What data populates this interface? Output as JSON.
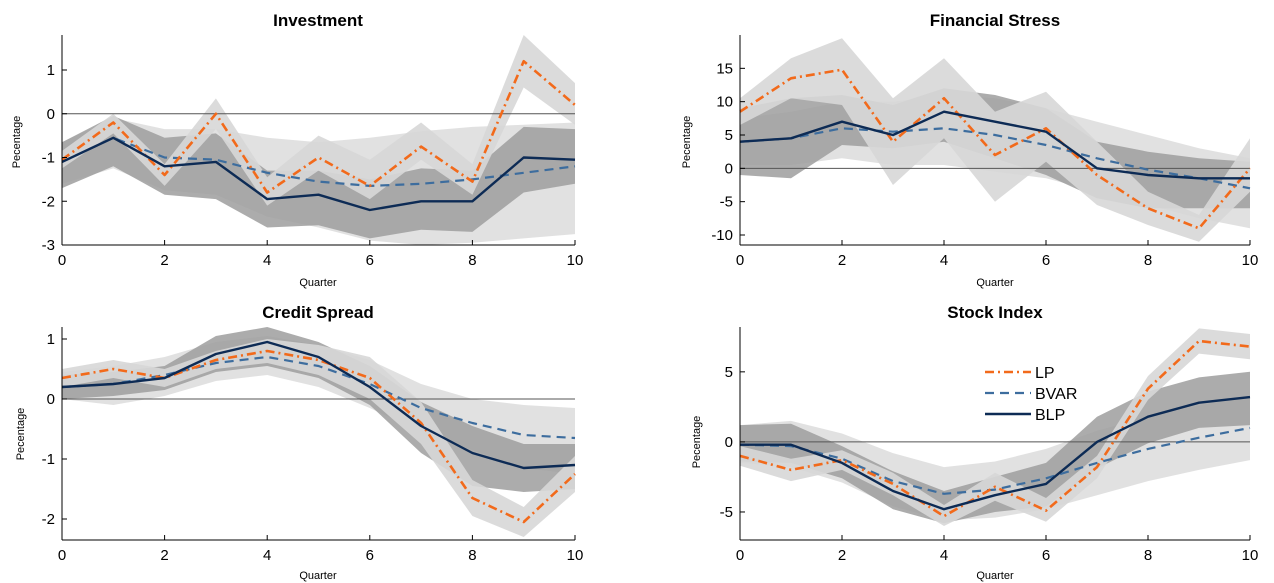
{
  "colors": {
    "LP": "#f26a1b",
    "BVAR": "#3d6d9e",
    "BLP": "#0d2b55",
    "band_light": "#d7d7d7",
    "band_dark": "#9e9e9e",
    "zero": "#555555"
  },
  "chart_data": [
    {
      "type": "line",
      "title": "Investment",
      "xlabel": "Quarter",
      "ylabel": "Pecentage",
      "x": [
        0,
        1,
        2,
        3,
        4,
        5,
        6,
        7,
        8,
        9,
        10
      ],
      "xticks": [
        0,
        2,
        4,
        6,
        8,
        10
      ],
      "yticks": [
        -3,
        -2,
        -1,
        0,
        1
      ],
      "ylim": [
        -3,
        1.8
      ],
      "series": [
        {
          "name": "LP",
          "values": [
            -1.05,
            -0.2,
            -1.4,
            0.0,
            -1.8,
            -1.0,
            -1.65,
            -0.75,
            -1.55,
            1.2,
            0.2
          ]
        },
        {
          "name": "BVAR",
          "values": [
            -1.1,
            -0.55,
            -1.0,
            -1.05,
            -1.35,
            -1.55,
            -1.65,
            -1.6,
            -1.5,
            -1.35,
            -1.2
          ]
        },
        {
          "name": "BLP",
          "values": [
            -1.1,
            -0.55,
            -1.2,
            -1.1,
            -1.95,
            -1.85,
            -2.2,
            -2.0,
            -2.0,
            -1.0,
            -1.05
          ]
        }
      ],
      "bands": [
        {
          "name": "LP",
          "lower": [
            -1.25,
            -0.45,
            -1.65,
            -0.35,
            -2.1,
            -1.3,
            -1.95,
            -1.05,
            -1.85,
            0.6,
            -0.25
          ],
          "upper": [
            -0.85,
            0.0,
            -1.15,
            0.35,
            -1.45,
            -0.5,
            -1.05,
            -0.2,
            -1.15,
            1.8,
            0.7
          ]
        },
        {
          "name": "BLP",
          "lower": [
            -1.7,
            -1.2,
            -1.85,
            -1.95,
            -2.6,
            -2.55,
            -2.85,
            -2.65,
            -2.7,
            -1.8,
            -1.6
          ],
          "upper": [
            -0.65,
            -0.05,
            -0.55,
            -0.45,
            -1.3,
            -1.3,
            -1.5,
            -1.25,
            -1.3,
            -0.3,
            -0.35
          ]
        },
        {
          "name": "BVAR",
          "lower": [
            -1.6,
            -1.25,
            -1.75,
            -1.85,
            -2.35,
            -2.6,
            -2.9,
            -3.0,
            -2.95,
            -2.85,
            -2.75
          ],
          "upper": [
            -0.65,
            -0.1,
            -0.35,
            -0.35,
            -0.55,
            -0.65,
            -0.55,
            -0.4,
            -0.3,
            -0.25,
            -0.2
          ]
        }
      ]
    },
    {
      "type": "line",
      "title": "Financial Stress",
      "xlabel": "Quarter",
      "ylabel": "Pecentage",
      "x": [
        0,
        1,
        2,
        3,
        4,
        5,
        6,
        7,
        8,
        9,
        10
      ],
      "xticks": [
        0,
        2,
        4,
        6,
        8,
        10
      ],
      "yticks": [
        -10,
        -5,
        0,
        5,
        10,
        15
      ],
      "ylim": [
        -11.5,
        20
      ],
      "series": [
        {
          "name": "LP",
          "values": [
            8.5,
            13.5,
            14.8,
            4.0,
            10.5,
            2.0,
            6.0,
            -1.0,
            -6.0,
            -9.0,
            0.0
          ]
        },
        {
          "name": "BVAR",
          "values": [
            4.0,
            4.5,
            6.0,
            5.5,
            6.0,
            5.0,
            3.5,
            1.5,
            -0.2,
            -1.5,
            -3.0
          ]
        },
        {
          "name": "BLP",
          "values": [
            4.0,
            4.5,
            7.0,
            5.0,
            8.5,
            7.0,
            5.5,
            0.0,
            -1.0,
            -1.5,
            -1.5
          ]
        }
      ],
      "bands": [
        {
          "name": "LP",
          "lower": [
            6.5,
            10.5,
            9.5,
            -2.5,
            4.5,
            -5.0,
            1.0,
            -5.5,
            -8.5,
            -11.0,
            -3.5
          ],
          "upper": [
            10.5,
            16.5,
            19.5,
            10.5,
            16.5,
            8.5,
            11.5,
            4.0,
            -3.5,
            -7.0,
            4.5
          ]
        },
        {
          "name": "BLP",
          "lower": [
            -1.0,
            -1.5,
            3.5,
            3.0,
            4.0,
            1.5,
            -1.0,
            -4.5,
            -6.0,
            -6.0,
            -6.0
          ],
          "upper": [
            9.0,
            10.5,
            11.0,
            9.5,
            12.0,
            11.0,
            9.0,
            4.0,
            2.5,
            1.5,
            1.0
          ]
        },
        {
          "name": "BVAR",
          "lower": [
            0.5,
            0.5,
            1.5,
            0.5,
            0.5,
            -0.5,
            -1.5,
            -3.5,
            -5.5,
            -7.5,
            -9.0
          ],
          "upper": [
            7.5,
            8.5,
            10.0,
            10.0,
            11.0,
            10.5,
            9.0,
            7.0,
            5.0,
            3.0,
            1.5
          ]
        }
      ]
    },
    {
      "type": "line",
      "title": "Credit Spread",
      "xlabel": "Quarter",
      "ylabel": "Pecentage",
      "x": [
        0,
        1,
        2,
        3,
        4,
        5,
        6,
        7,
        8,
        9,
        10
      ],
      "xticks": [
        0,
        2,
        4,
        6,
        8,
        10
      ],
      "yticks": [
        -2,
        -1,
        0,
        1
      ],
      "ylim": [
        -2.35,
        1.2
      ],
      "series": [
        {
          "name": "LP",
          "values": [
            0.35,
            0.5,
            0.35,
            0.65,
            0.8,
            0.65,
            0.35,
            -0.4,
            -1.65,
            -2.05,
            -1.25
          ]
        },
        {
          "name": "BVAR",
          "values": [
            0.2,
            0.25,
            0.4,
            0.6,
            0.7,
            0.55,
            0.25,
            -0.15,
            -0.4,
            -0.6,
            -0.65
          ]
        },
        {
          "name": "BLP",
          "values": [
            0.2,
            0.25,
            0.35,
            0.75,
            0.95,
            0.7,
            0.2,
            -0.45,
            -0.9,
            -1.15,
            -1.1
          ]
        }
      ],
      "bands": [
        {
          "name": "LP",
          "lower": [
            0.2,
            0.35,
            0.2,
            0.5,
            0.6,
            0.4,
            0.0,
            -0.75,
            -1.95,
            -2.3,
            -1.55
          ],
          "upper": [
            0.5,
            0.65,
            0.5,
            0.8,
            1.0,
            0.9,
            0.7,
            -0.05,
            -1.35,
            -1.8,
            -0.95
          ]
        },
        {
          "name": "BLP",
          "lower": [
            0.0,
            0.05,
            0.15,
            0.45,
            0.55,
            0.35,
            -0.1,
            -0.9,
            -1.45,
            -1.55,
            -1.5
          ],
          "upper": [
            0.4,
            0.45,
            0.55,
            1.05,
            1.2,
            0.95,
            0.55,
            -0.05,
            -0.45,
            -0.75,
            -0.75
          ]
        },
        {
          "name": "BVAR",
          "lower": [
            0.0,
            -0.1,
            0.05,
            0.3,
            0.4,
            0.2,
            -0.15,
            -0.55,
            -0.85,
            -1.15,
            -1.25
          ],
          "upper": [
            0.45,
            0.55,
            0.7,
            0.95,
            1.05,
            0.9,
            0.65,
            0.25,
            0.0,
            -0.1,
            -0.15
          ]
        }
      ]
    },
    {
      "type": "line",
      "title": "Stock Index",
      "xlabel": "Quarter",
      "ylabel": "Pecentage",
      "x": [
        0,
        1,
        2,
        3,
        4,
        5,
        6,
        7,
        8,
        9,
        10
      ],
      "xticks": [
        0,
        2,
        4,
        6,
        8,
        10
      ],
      "yticks": [
        -5,
        0,
        5
      ],
      "ylim": [
        -7,
        8.2
      ],
      "series": [
        {
          "name": "LP",
          "values": [
            -1.0,
            -2.0,
            -1.3,
            -3.0,
            -5.3,
            -3.2,
            -4.9,
            -1.8,
            3.8,
            7.2,
            6.8
          ]
        },
        {
          "name": "BVAR",
          "values": [
            -0.2,
            -0.3,
            -1.2,
            -2.8,
            -3.7,
            -3.4,
            -2.6,
            -1.5,
            -0.5,
            0.3,
            1.0
          ]
        },
        {
          "name": "BLP",
          "values": [
            -0.2,
            -0.2,
            -1.5,
            -3.5,
            -4.8,
            -3.8,
            -3.0,
            0.0,
            1.8,
            2.8,
            3.2
          ]
        }
      ],
      "bands": [
        {
          "name": "LP",
          "lower": [
            -1.7,
            -2.8,
            -2.0,
            -3.8,
            -6.0,
            -4.2,
            -5.7,
            -2.6,
            3.0,
            6.3,
            5.9
          ],
          "upper": [
            -0.3,
            -1.2,
            -0.6,
            -2.2,
            -4.5,
            -2.2,
            -4.0,
            -1.0,
            4.7,
            8.1,
            7.7
          ]
        },
        {
          "name": "BLP",
          "lower": [
            -1.4,
            -1.5,
            -2.6,
            -4.8,
            -5.8,
            -5.0,
            -4.6,
            -1.9,
            -0.1,
            1.0,
            1.2
          ],
          "upper": [
            1.2,
            1.3,
            -0.3,
            -2.1,
            -3.5,
            -2.5,
            -1.5,
            1.8,
            3.6,
            4.6,
            5.0
          ]
        },
        {
          "name": "BVAR",
          "lower": [
            -1.5,
            -1.8,
            -2.9,
            -4.6,
            -5.6,
            -5.4,
            -4.8,
            -3.8,
            -2.8,
            -2.0,
            -1.3
          ],
          "upper": [
            1.2,
            1.5,
            0.6,
            -0.8,
            -1.8,
            -1.4,
            -0.5,
            0.8,
            1.8,
            2.6,
            3.3
          ]
        }
      ],
      "legend": {
        "position": "upper-center",
        "entries": [
          "LP",
          "BVAR",
          "BLP"
        ]
      }
    }
  ]
}
